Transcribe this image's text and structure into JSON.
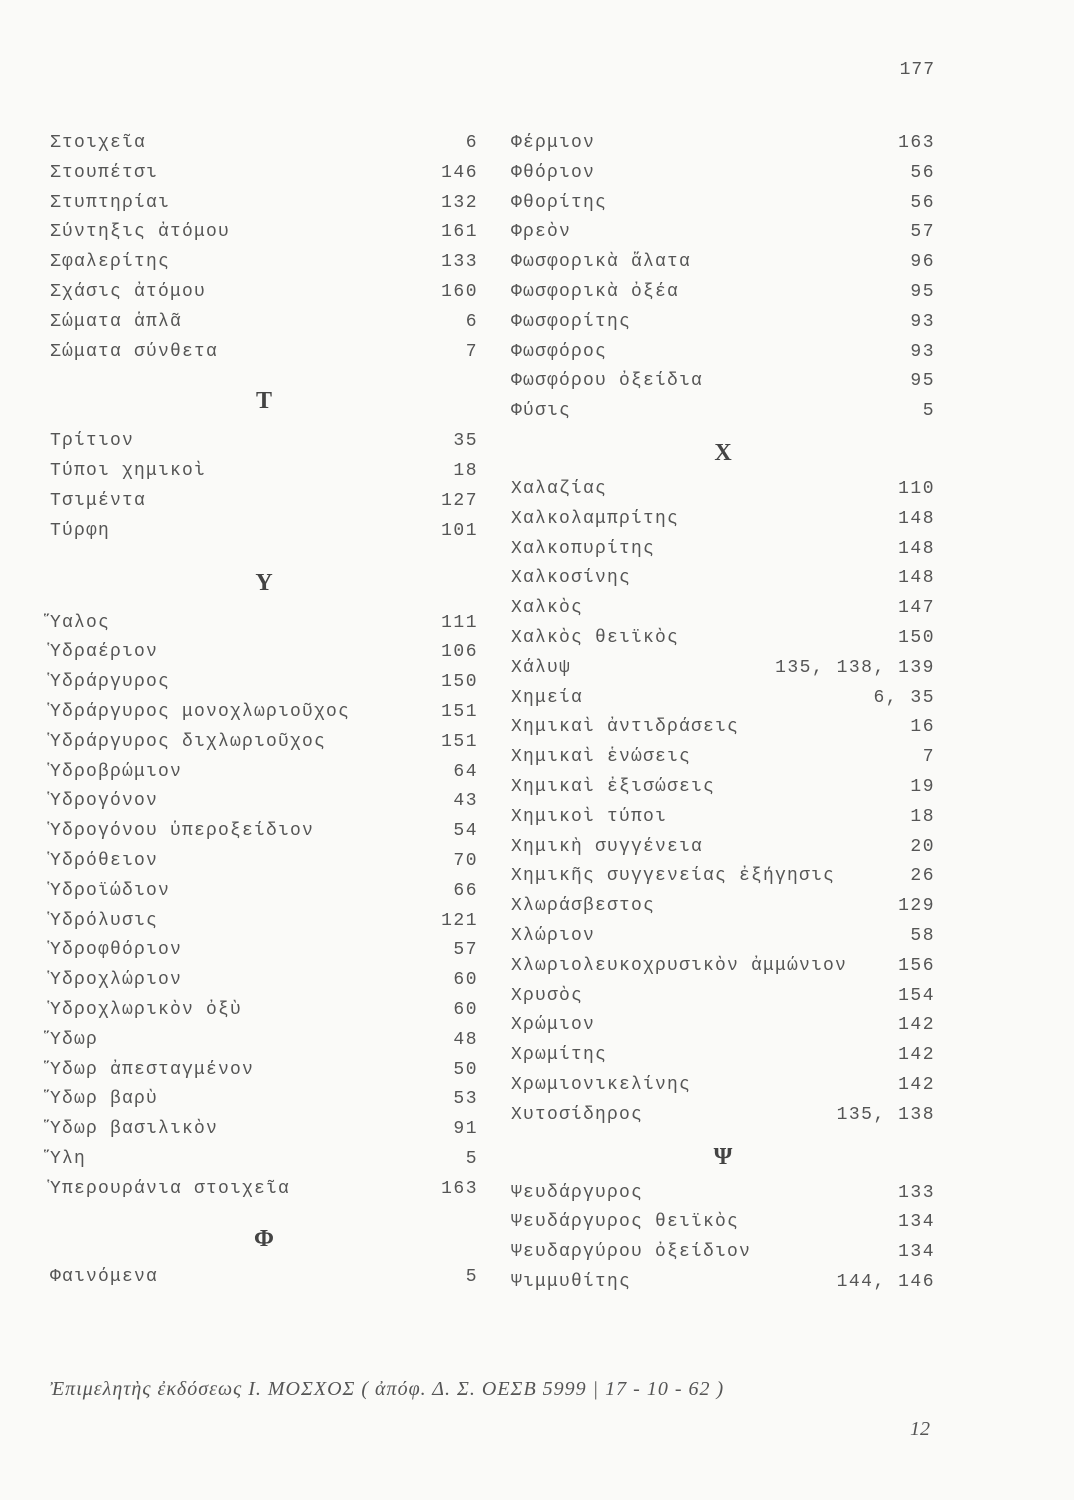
{
  "page_number": "177",
  "left_column": [
    {
      "type": "entry",
      "term": "Στοιχεῖα",
      "pages": "6"
    },
    {
      "type": "entry",
      "term": "Στουπέτσι",
      "pages": "146"
    },
    {
      "type": "entry",
      "term": "Στυπτηρίαι",
      "pages": "132"
    },
    {
      "type": "entry",
      "term": "Σύντηξις ἀτόμου",
      "pages": "161"
    },
    {
      "type": "entry",
      "term": "Σφαλερίτης",
      "pages": "133"
    },
    {
      "type": "entry",
      "term": "Σχάσις ἀτόμου",
      "pages": "160"
    },
    {
      "type": "entry",
      "term": "Σώματα ἁπλᾶ",
      "pages": "6"
    },
    {
      "type": "entry",
      "term": "Σώματα σύνθετα",
      "pages": "7"
    },
    {
      "type": "heading",
      "letter": "T"
    },
    {
      "type": "entry",
      "term": "Τρίτιον",
      "pages": "35"
    },
    {
      "type": "entry",
      "term": "Τύποι χημικοὶ",
      "pages": "18"
    },
    {
      "type": "entry",
      "term": "Τσιμέντα",
      "pages": "127"
    },
    {
      "type": "entry",
      "term": "Τύρφη",
      "pages": "101"
    },
    {
      "type": "heading",
      "letter": "Υ"
    },
    {
      "type": "entry",
      "term": "Ὕαλος",
      "pages": "111"
    },
    {
      "type": "entry",
      "term": "Ὑδραέριον",
      "pages": "106"
    },
    {
      "type": "entry",
      "term": "Ὑδράργυρος",
      "pages": "150"
    },
    {
      "type": "entry",
      "term": "Ὑδράργυρος μονοχλωριοῦχος",
      "pages": "151"
    },
    {
      "type": "entry",
      "term": "Ὑδράργυρος διχλωριοῦχος",
      "pages": "151"
    },
    {
      "type": "entry",
      "term": "Ὑδροβρώμιον",
      "pages": "64"
    },
    {
      "type": "entry",
      "term": "Ὑδρογόνον",
      "pages": "43"
    },
    {
      "type": "entry",
      "term": "Ὑδρογόνου ὑπεροξείδιον",
      "pages": "54"
    },
    {
      "type": "entry",
      "term": "Ὑδρόθειον",
      "pages": "70"
    },
    {
      "type": "entry",
      "term": "Ὑδροϊώδιον",
      "pages": "66"
    },
    {
      "type": "entry",
      "term": "Ὑδρόλυσις",
      "pages": "121"
    },
    {
      "type": "entry",
      "term": "Ὑδροφθόριον",
      "pages": "57"
    },
    {
      "type": "entry",
      "term": "Ὑδροχλώριον",
      "pages": "60"
    },
    {
      "type": "entry",
      "term": "Ὑδροχλωρικὸν ὀξὺ",
      "pages": "60"
    },
    {
      "type": "entry",
      "term": "Ὕδωρ",
      "pages": "48"
    },
    {
      "type": "entry",
      "term": "Ὕδωρ ἀπεσταγμένον",
      "pages": "50"
    },
    {
      "type": "entry",
      "term": "Ὕδωρ βαρὺ",
      "pages": "53"
    },
    {
      "type": "entry",
      "term": "Ὕδωρ βασιλικὸν",
      "pages": "91"
    },
    {
      "type": "entry",
      "term": "Ὕλη",
      "pages": "5"
    },
    {
      "type": "entry",
      "term": "Ὑπερουράνια στοιχεῖα",
      "pages": "163"
    },
    {
      "type": "heading",
      "letter": "Φ"
    },
    {
      "type": "entry",
      "term": "Φαινόμενα",
      "pages": "5"
    }
  ],
  "right_column": [
    {
      "type": "entry",
      "term": "Φέρμιον",
      "pages": "163"
    },
    {
      "type": "entry",
      "term": "Φθόριον",
      "pages": "56"
    },
    {
      "type": "entry",
      "term": "Φθορίτης",
      "pages": "56"
    },
    {
      "type": "entry",
      "term": "Φρεὸν",
      "pages": "57"
    },
    {
      "type": "entry",
      "term": "Φωσφορικὰ ἅλατα",
      "pages": "96"
    },
    {
      "type": "entry",
      "term": "Φωσφορικὰ ὀξέα",
      "pages": "95"
    },
    {
      "type": "entry",
      "term": "Φωσφορίτης",
      "pages": "93"
    },
    {
      "type": "entry",
      "term": "Φωσφόρος",
      "pages": "93"
    },
    {
      "type": "entry",
      "term": "Φωσφόρου ὀξείδια",
      "pages": "95"
    },
    {
      "type": "entry",
      "term": "Φύσις",
      "pages": "5"
    },
    {
      "type": "heading",
      "letter": "X"
    },
    {
      "type": "entry",
      "term": "Χαλαζίας",
      "pages": "110"
    },
    {
      "type": "entry",
      "term": "Χαλκολαμπρίτης",
      "pages": "148"
    },
    {
      "type": "entry",
      "term": "Χαλκοπυρίτης",
      "pages": "148"
    },
    {
      "type": "entry",
      "term": "Χαλκοσίνης",
      "pages": "148"
    },
    {
      "type": "entry",
      "term": "Χαλκὸς",
      "pages": "147"
    },
    {
      "type": "entry",
      "term": "Χαλκὸς θειϊκὸς",
      "pages": "150"
    },
    {
      "type": "entry",
      "term": "Χάλυψ",
      "pages": "135, 138, 139"
    },
    {
      "type": "entry",
      "term": "Χημεία",
      "pages": "6, 35"
    },
    {
      "type": "entry",
      "term": "Χημικαὶ ἀντιδράσεις",
      "pages": "16"
    },
    {
      "type": "entry",
      "term": "Χημικαὶ ἑνώσεις",
      "pages": "7"
    },
    {
      "type": "entry",
      "term": "Χημικαὶ ἐξισώσεις",
      "pages": "19"
    },
    {
      "type": "entry",
      "term": "Χημικοὶ τύποι",
      "pages": "18"
    },
    {
      "type": "entry",
      "term": "Χημικὴ συγγένεια",
      "pages": "20"
    },
    {
      "type": "entry",
      "term": "Χημικῆς συγγενείας ἐξήγησις",
      "pages": "26"
    },
    {
      "type": "entry",
      "term": "Χλωράσβεστος",
      "pages": "129"
    },
    {
      "type": "entry",
      "term": "Χλώριον",
      "pages": "58"
    },
    {
      "type": "entry",
      "term": "Χλωριολευκοχρυσικὸν ἀμμώνιον",
      "pages": "156"
    },
    {
      "type": "entry",
      "term": "Χρυσὸς",
      "pages": "154"
    },
    {
      "type": "entry",
      "term": "Χρώμιον",
      "pages": "142"
    },
    {
      "type": "entry",
      "term": "Χρωμίτης",
      "pages": "142"
    },
    {
      "type": "entry",
      "term": "Χρωμιονικελίνης",
      "pages": "142"
    },
    {
      "type": "entry",
      "term": "Χυτοσίδηρος",
      "pages": "135, 138"
    },
    {
      "type": "heading",
      "letter": "Ψ"
    },
    {
      "type": "entry",
      "term": "Ψευδάργυρος",
      "pages": "133"
    },
    {
      "type": "entry",
      "term": "Ψευδάργυρος θειϊκὸς",
      "pages": "134"
    },
    {
      "type": "entry",
      "term": "Ψευδαργύρου ὀξείδιον",
      "pages": "134"
    },
    {
      "type": "entry",
      "term": "Ψιμμυθίτης",
      "pages": "144, 146"
    }
  ],
  "footer": {
    "editor_note": "Ἐπιμελητὴς ἐκδόσεως Ι. ΜΟΣΧΟΣ ( ἀπόφ. Δ. Σ. ΟΕΣΒ 5999 | 17 - 10 - 62 )",
    "signature_mark": "12"
  }
}
